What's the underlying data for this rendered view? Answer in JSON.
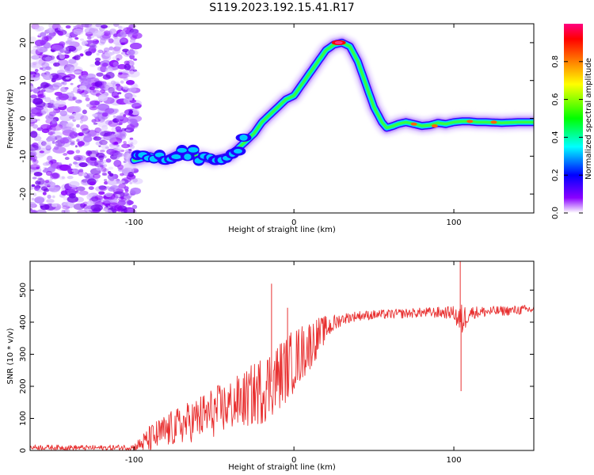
{
  "title": "S119.2023.192.15.41.R17",
  "chart_data": [
    {
      "type": "heatmap",
      "xlabel": "Height of straight line (km)",
      "ylabel": "Frequency (Hz)",
      "xlim": [
        -165,
        150
      ],
      "ylim": [
        -25,
        25
      ],
      "xticks": [
        -100,
        0,
        100
      ],
      "yticks": [
        -20,
        -10,
        0,
        10,
        20
      ],
      "grid": false,
      "colorbar": {
        "label": "Normalized spectral amplitude",
        "ticks": [
          0.0,
          0.2,
          0.4,
          0.6,
          0.8
        ],
        "range": [
          0,
          1
        ],
        "colormap": [
          "#ffffff",
          "#7a00ff",
          "#0000ff",
          "#00ffff",
          "#00ff00",
          "#ffff00",
          "#ff8000",
          "#ff0000",
          "#ff0080"
        ]
      },
      "ridge": {
        "x": [
          -100,
          -90,
          -80,
          -70,
          -60,
          -50,
          -40,
          -35,
          -30,
          -25,
          -20,
          -15,
          -10,
          -5,
          0,
          5,
          10,
          15,
          20,
          25,
          30,
          35,
          40,
          45,
          50,
          55,
          58,
          62,
          65,
          70,
          75,
          80,
          85,
          90,
          95,
          100,
          105,
          110,
          115,
          120,
          130,
          140,
          150
        ],
        "y": [
          -11,
          -10,
          -11,
          -9,
          -10,
          -11,
          -10,
          -8,
          -6,
          -4,
          -1,
          1,
          3,
          5,
          6,
          9,
          12,
          15,
          18,
          19.5,
          20,
          19,
          15,
          9,
          3,
          -1,
          -2.5,
          -2,
          -1.5,
          -1,
          -1.5,
          -2,
          -1.8,
          -1.2,
          -1.5,
          -1,
          -0.8,
          -0.8,
          -1,
          -1,
          -1.2,
          -1,
          -1
        ]
      },
      "noise_region": [
        -165,
        -98
      ]
    },
    {
      "type": "line",
      "xlabel": "Height of straight line (km)",
      "ylabel": "SNR (10 * v/v)",
      "xlim": [
        -165,
        150
      ],
      "ylim": [
        0,
        590
      ],
      "xticks": [
        -100,
        0,
        100
      ],
      "yticks": [
        0,
        100,
        200,
        300,
        400,
        500
      ],
      "grid": false,
      "color": "#e83030",
      "envelope": {
        "x": [
          -165,
          -120,
          -100,
          -90,
          -80,
          -70,
          -60,
          -50,
          -40,
          -30,
          -20,
          -10,
          0,
          10,
          20,
          30,
          40,
          60,
          80,
          100,
          104,
          110,
          130,
          150
        ],
        "mean": [
          10,
          8,
          10,
          35,
          60,
          80,
          100,
          120,
          140,
          160,
          190,
          230,
          280,
          330,
          380,
          410,
          420,
          425,
          430,
          430,
          400,
          430,
          435,
          440
        ],
        "amp": [
          8,
          8,
          10,
          45,
          55,
          60,
          70,
          80,
          80,
          90,
          110,
          110,
          100,
          80,
          40,
          18,
          15,
          15,
          15,
          20,
          60,
          20,
          15,
          15
        ]
      },
      "spikes": [
        {
          "x": -14,
          "y": 520
        },
        {
          "x": -4,
          "y": 445
        },
        {
          "x": 104,
          "y": 590
        },
        {
          "x": 104.5,
          "y": 185
        }
      ]
    }
  ]
}
